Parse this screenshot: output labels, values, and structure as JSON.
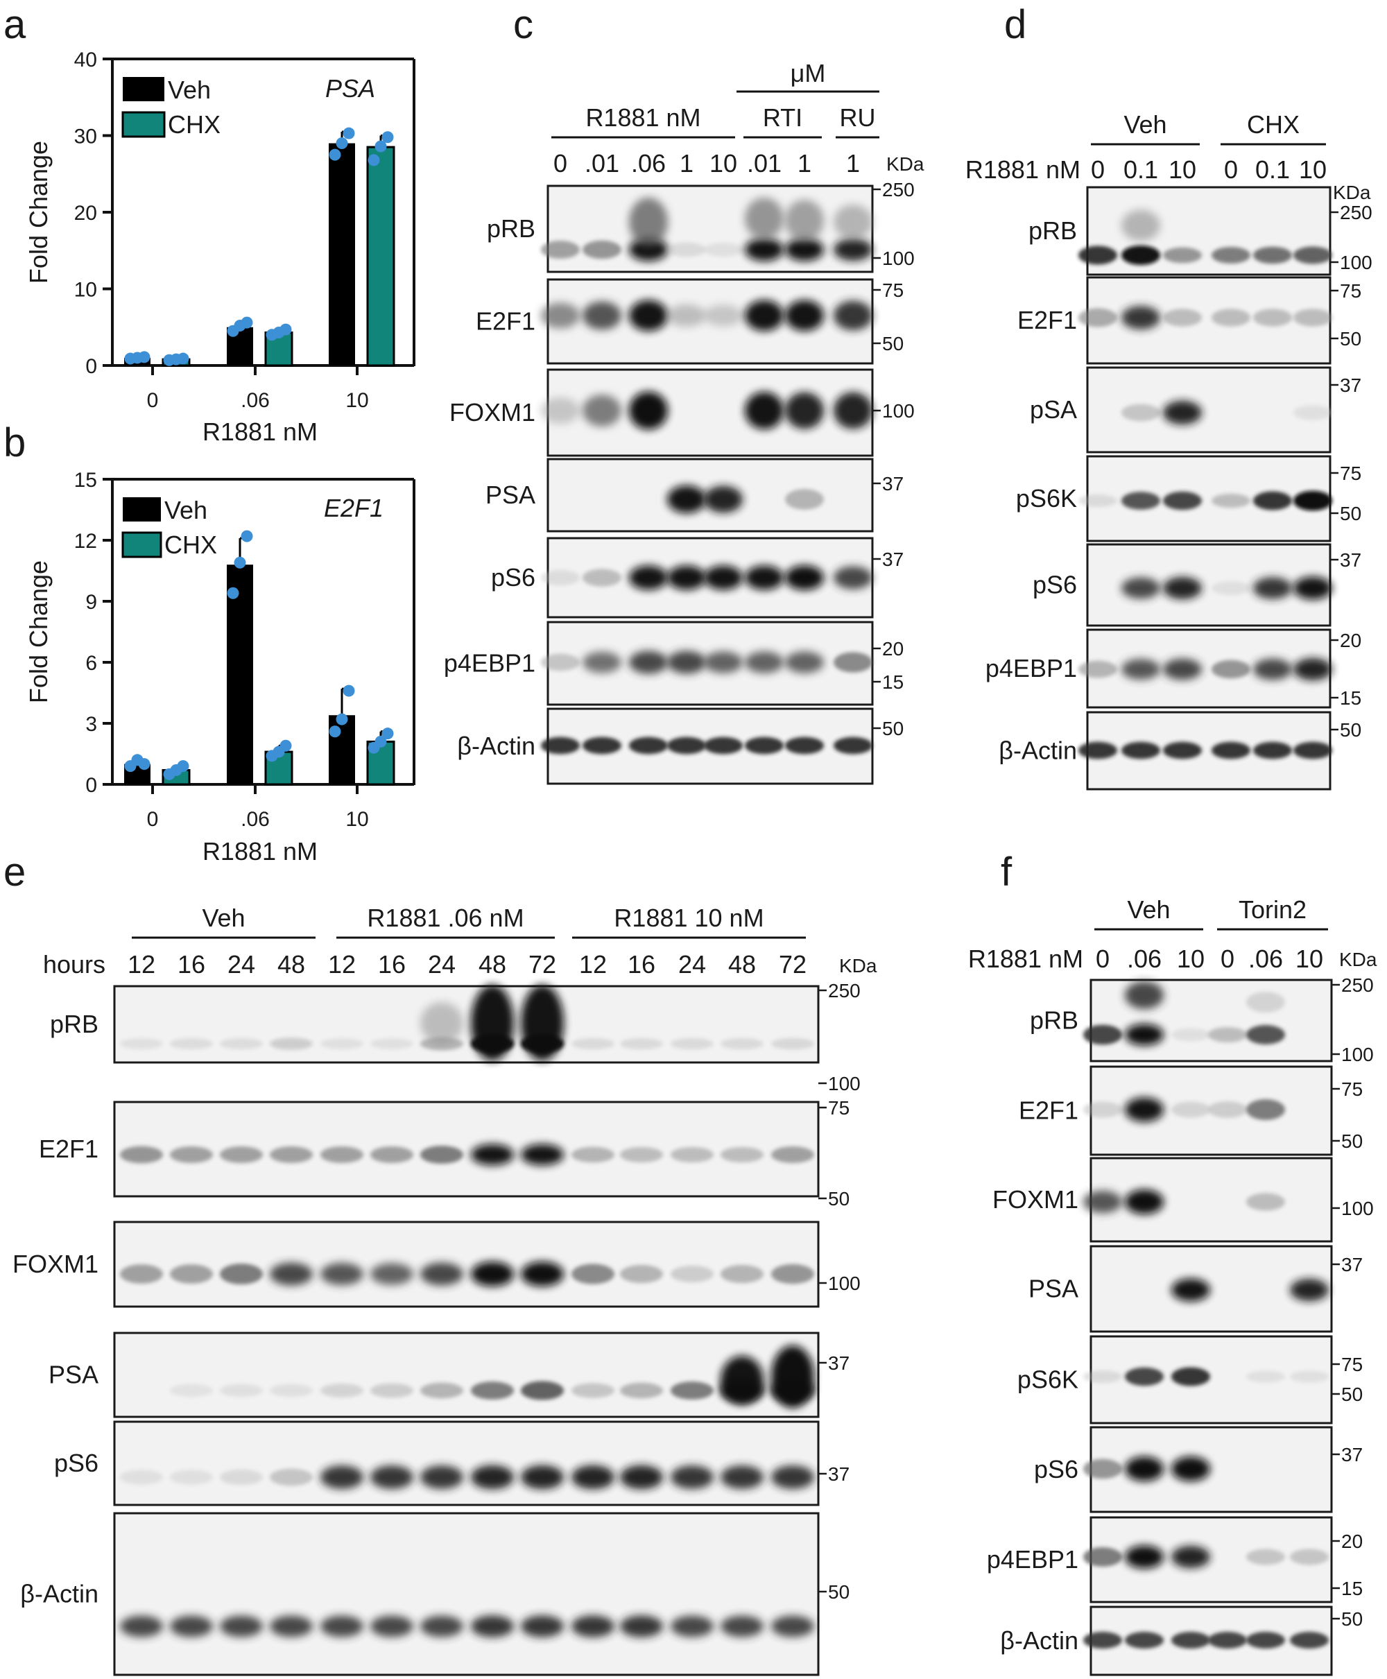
{
  "panels": {
    "a": "a",
    "b": "b",
    "c": "c",
    "d": "d",
    "e": "e",
    "f": "f"
  },
  "chart_data": [
    {
      "panel": "a",
      "type": "bar",
      "title": "PSA",
      "xlabel": "R1881 nM",
      "ylabel": "Fold Change",
      "categories": [
        "0",
        ".06",
        "10"
      ],
      "ylim": [
        0,
        40
      ],
      "yticks": [
        "0",
        "10",
        "20",
        "30",
        "40"
      ],
      "legend": "top-left",
      "series": [
        {
          "name": "Veh",
          "color": "#000000",
          "values": [
            1.0,
            5.0,
            29.0
          ],
          "errors": [
            0.2,
            0.6,
            1.5
          ],
          "points": [
            [
              0.9,
              1.0,
              1.1
            ],
            [
              4.5,
              5.2,
              5.6
            ],
            [
              27.5,
              29.0,
              30.3
            ]
          ]
        },
        {
          "name": "CHX",
          "color": "#12857a",
          "values": [
            0.8,
            4.3,
            28.5
          ],
          "errors": [
            0.1,
            0.4,
            1.5
          ],
          "points": [
            [
              0.7,
              0.8,
              0.9
            ],
            [
              4.0,
              4.3,
              4.7
            ],
            [
              26.8,
              28.6,
              29.8
            ]
          ]
        }
      ]
    },
    {
      "panel": "b",
      "type": "bar",
      "title": "E2F1",
      "xlabel": "R1881 nM",
      "ylabel": "Fold Change",
      "categories": [
        "0",
        ".06",
        "10"
      ],
      "ylim": [
        0,
        15
      ],
      "yticks": [
        "0",
        "3",
        "6",
        "9",
        "12",
        "15"
      ],
      "legend": "top-left",
      "series": [
        {
          "name": "Veh",
          "color": "#000000",
          "values": [
            1.0,
            10.8,
            3.4
          ],
          "errors": [
            0.2,
            1.3,
            1.3
          ],
          "points": [
            [
              0.9,
              1.2,
              1.0
            ],
            [
              9.4,
              10.9,
              12.2
            ],
            [
              2.6,
              3.2,
              4.6
            ]
          ]
        },
        {
          "name": "CHX",
          "color": "#12857a",
          "values": [
            0.7,
            1.6,
            2.1
          ],
          "errors": [
            0.2,
            0.3,
            0.5
          ],
          "points": [
            [
              0.5,
              0.7,
              0.9
            ],
            [
              1.4,
              1.6,
              1.9
            ],
            [
              1.8,
              2.1,
              2.5
            ]
          ]
        }
      ]
    }
  ],
  "blots": [
    {
      "panel": "c",
      "unit": "KDa",
      "top_group": "μM",
      "groups": [
        "R1881 nM",
        "RTI",
        "RU"
      ],
      "lanes": [
        "0",
        ".01",
        ".06",
        "1",
        "10",
        ".01",
        "1",
        "1"
      ],
      "rows": [
        {
          "label": "pRB",
          "mw": [
            "250",
            "100"
          ]
        },
        {
          "label": "E2F1",
          "mw": [
            "75",
            "50"
          ]
        },
        {
          "label": "FOXM1",
          "mw": [
            "100"
          ]
        },
        {
          "label": "PSA",
          "mw": [
            "37"
          ]
        },
        {
          "label": "pS6",
          "mw": [
            "37"
          ]
        },
        {
          "label": "p4EBP1",
          "mw": [
            "20",
            "15"
          ]
        },
        {
          "label": "β-Actin",
          "mw": [
            "50"
          ]
        }
      ]
    },
    {
      "panel": "d",
      "unit": "KDa",
      "lane_axis": "R1881 nM",
      "groups": [
        "Veh",
        "CHX"
      ],
      "lanes": [
        "0",
        "0.1",
        "10",
        "0",
        "0.1",
        "10"
      ],
      "rows": [
        {
          "label": "pRB",
          "mw": [
            "250",
            "100"
          ]
        },
        {
          "label": "E2F1",
          "mw": [
            "75",
            "50"
          ]
        },
        {
          "label": "pSA",
          "mw": [
            "37"
          ]
        },
        {
          "label": "pS6K",
          "mw": [
            "75",
            "50"
          ]
        },
        {
          "label": "pS6",
          "mw": [
            "37"
          ]
        },
        {
          "label": "p4EBP1",
          "mw": [
            "20",
            "15"
          ]
        },
        {
          "label": "β-Actin",
          "mw": [
            "50"
          ]
        }
      ]
    },
    {
      "panel": "e",
      "unit": "KDa",
      "lane_axis": "hours",
      "groups": [
        "Veh",
        "R1881 .06 nM",
        "R1881 10 nM"
      ],
      "lanes": [
        "12",
        "16",
        "24",
        "48",
        "12",
        "16",
        "24",
        "48",
        "72",
        "12",
        "16",
        "24",
        "48",
        "72"
      ],
      "rows": [
        {
          "label": "pRB",
          "mw": [
            "250",
            "100"
          ]
        },
        {
          "label": "E2F1",
          "mw": [
            "75",
            "50"
          ]
        },
        {
          "label": "FOXM1",
          "mw": [
            "100"
          ]
        },
        {
          "label": "PSA",
          "mw": [
            "37"
          ]
        },
        {
          "label": "pS6",
          "mw": [
            "37"
          ]
        },
        {
          "label": "β-Actin",
          "mw": [
            "50"
          ]
        }
      ]
    },
    {
      "panel": "f",
      "unit": "KDa",
      "lane_axis": "R1881 nM",
      "groups": [
        "Veh",
        "Torin2"
      ],
      "lanes": [
        "0",
        ".06",
        "10",
        "0",
        ".06",
        "10"
      ],
      "rows": [
        {
          "label": "pRB",
          "mw": [
            "250",
            "100"
          ]
        },
        {
          "label": "E2F1",
          "mw": [
            "75",
            "50"
          ]
        },
        {
          "label": "FOXM1",
          "mw": [
            "100"
          ]
        },
        {
          "label": "PSA",
          "mw": [
            "37"
          ]
        },
        {
          "label": "pS6K",
          "mw": [
            "75",
            "50"
          ]
        },
        {
          "label": "pS6",
          "mw": [
            "37"
          ]
        },
        {
          "label": "p4EBP1",
          "mw": [
            "20",
            "15"
          ]
        },
        {
          "label": "β-Actin",
          "mw": [
            "50"
          ]
        }
      ]
    }
  ]
}
